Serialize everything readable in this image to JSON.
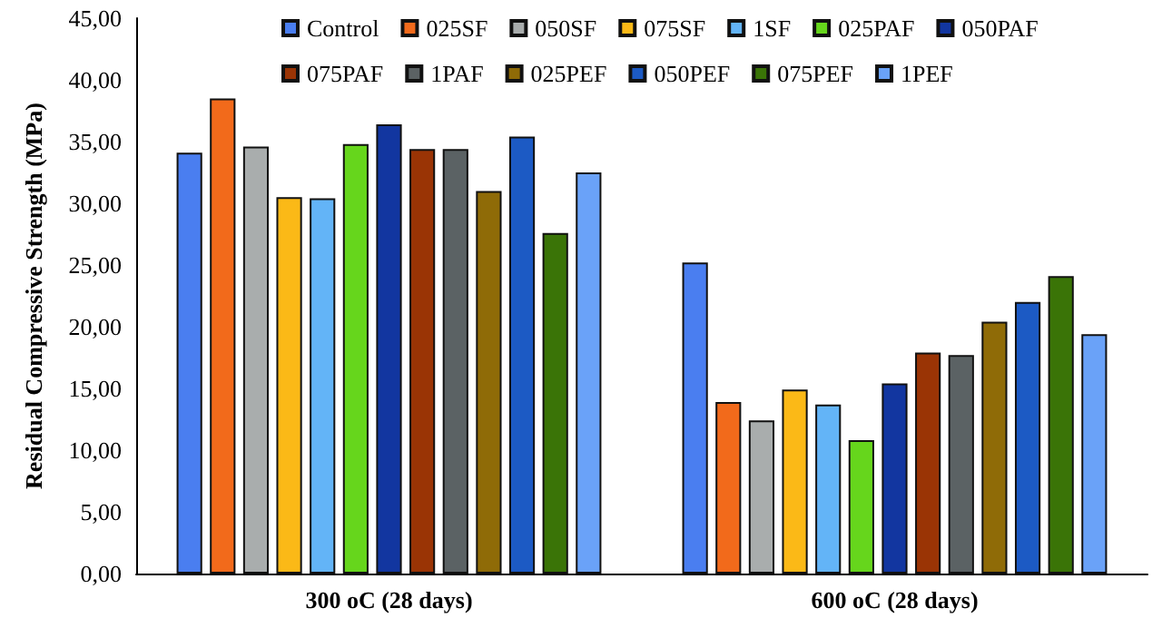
{
  "chart_data": {
    "type": "bar",
    "ylabel": "Residual Compressive Strength (MPa)",
    "categories": [
      "300 oC (28 days)",
      "600 oC (28 days)"
    ],
    "series": [
      {
        "name": "Control",
        "color": "#4a7ef0",
        "values": [
          34.1,
          25.2
        ]
      },
      {
        "name": "025SF",
        "color": "#f26a1b",
        "values": [
          38.5,
          13.9
        ]
      },
      {
        "name": "050SF",
        "color": "#a9adad",
        "values": [
          34.6,
          12.4
        ]
      },
      {
        "name": "075SF",
        "color": "#fbb917",
        "values": [
          30.5,
          14.9
        ]
      },
      {
        "name": "1SF",
        "color": "#63b4f7",
        "values": [
          30.4,
          13.7
        ]
      },
      {
        "name": "025PAF",
        "color": "#66d61c",
        "values": [
          34.8,
          10.8
        ]
      },
      {
        "name": "050PAF",
        "color": "#1236a0",
        "values": [
          36.4,
          15.4
        ]
      },
      {
        "name": "075PAF",
        "color": "#9a3405",
        "values": [
          34.4,
          17.9
        ]
      },
      {
        "name": "1PAF",
        "color": "#5b6264",
        "values": [
          34.4,
          17.7
        ]
      },
      {
        "name": "025PEF",
        "color": "#8f6b07",
        "values": [
          31.0,
          20.4
        ]
      },
      {
        "name": "050PEF",
        "color": "#1c5ac4",
        "values": [
          35.4,
          22.0
        ]
      },
      {
        "name": "075PEF",
        "color": "#3a7407",
        "values": [
          27.6,
          24.1
        ]
      },
      {
        "name": "1PEF",
        "color": "#6aa2f8",
        "values": [
          32.5,
          19.4
        ]
      }
    ],
    "ylim": [
      0,
      45
    ],
    "yticks": [
      {
        "value": 0,
        "label": "0,00"
      },
      {
        "value": 5,
        "label": "5,00"
      },
      {
        "value": 10,
        "label": "10,00"
      },
      {
        "value": 15,
        "label": "15,00"
      },
      {
        "value": 20,
        "label": "20,00"
      },
      {
        "value": 25,
        "label": "25,00"
      },
      {
        "value": 30,
        "label": "30,00"
      },
      {
        "value": 35,
        "label": "35,00"
      },
      {
        "value": 40,
        "label": "40,00"
      },
      {
        "value": 45,
        "label": "45,00"
      }
    ],
    "grid": false,
    "legend": "top"
  }
}
